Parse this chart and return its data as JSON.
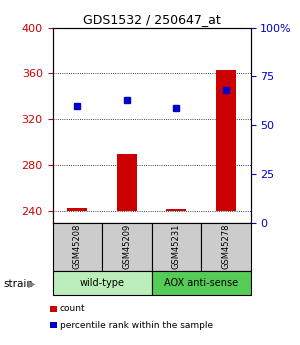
{
  "title": "GDS1532 / 250647_at",
  "samples": [
    "GSM45208",
    "GSM45209",
    "GSM45231",
    "GSM45278"
  ],
  "count_values": [
    243,
    290,
    242,
    363
  ],
  "percentile_values": [
    60,
    63,
    59,
    68
  ],
  "ylim_left": [
    230,
    400
  ],
  "ylim_right": [
    0,
    100
  ],
  "yticks_left": [
    240,
    280,
    320,
    360,
    400
  ],
  "yticks_right": [
    0,
    25,
    50,
    75,
    100
  ],
  "bar_base": 240,
  "left_color": "#cc0000",
  "right_color": "#0000cc",
  "bar_color": "#cc0000",
  "dot_color": "#0000cc",
  "groups": [
    {
      "label": "wild-type",
      "indices": [
        0,
        1
      ],
      "color": "#bbeebb"
    },
    {
      "label": "AOX anti-sense",
      "indices": [
        2,
        3
      ],
      "color": "#55cc55"
    }
  ],
  "strain_label": "strain",
  "legend_items": [
    {
      "color": "#cc0000",
      "label": "count"
    },
    {
      "color": "#0000cc",
      "label": "percentile rank within the sample"
    }
  ],
  "sample_box_color": "#cccccc",
  "figsize": [
    3.0,
    3.45
  ],
  "dpi": 100
}
